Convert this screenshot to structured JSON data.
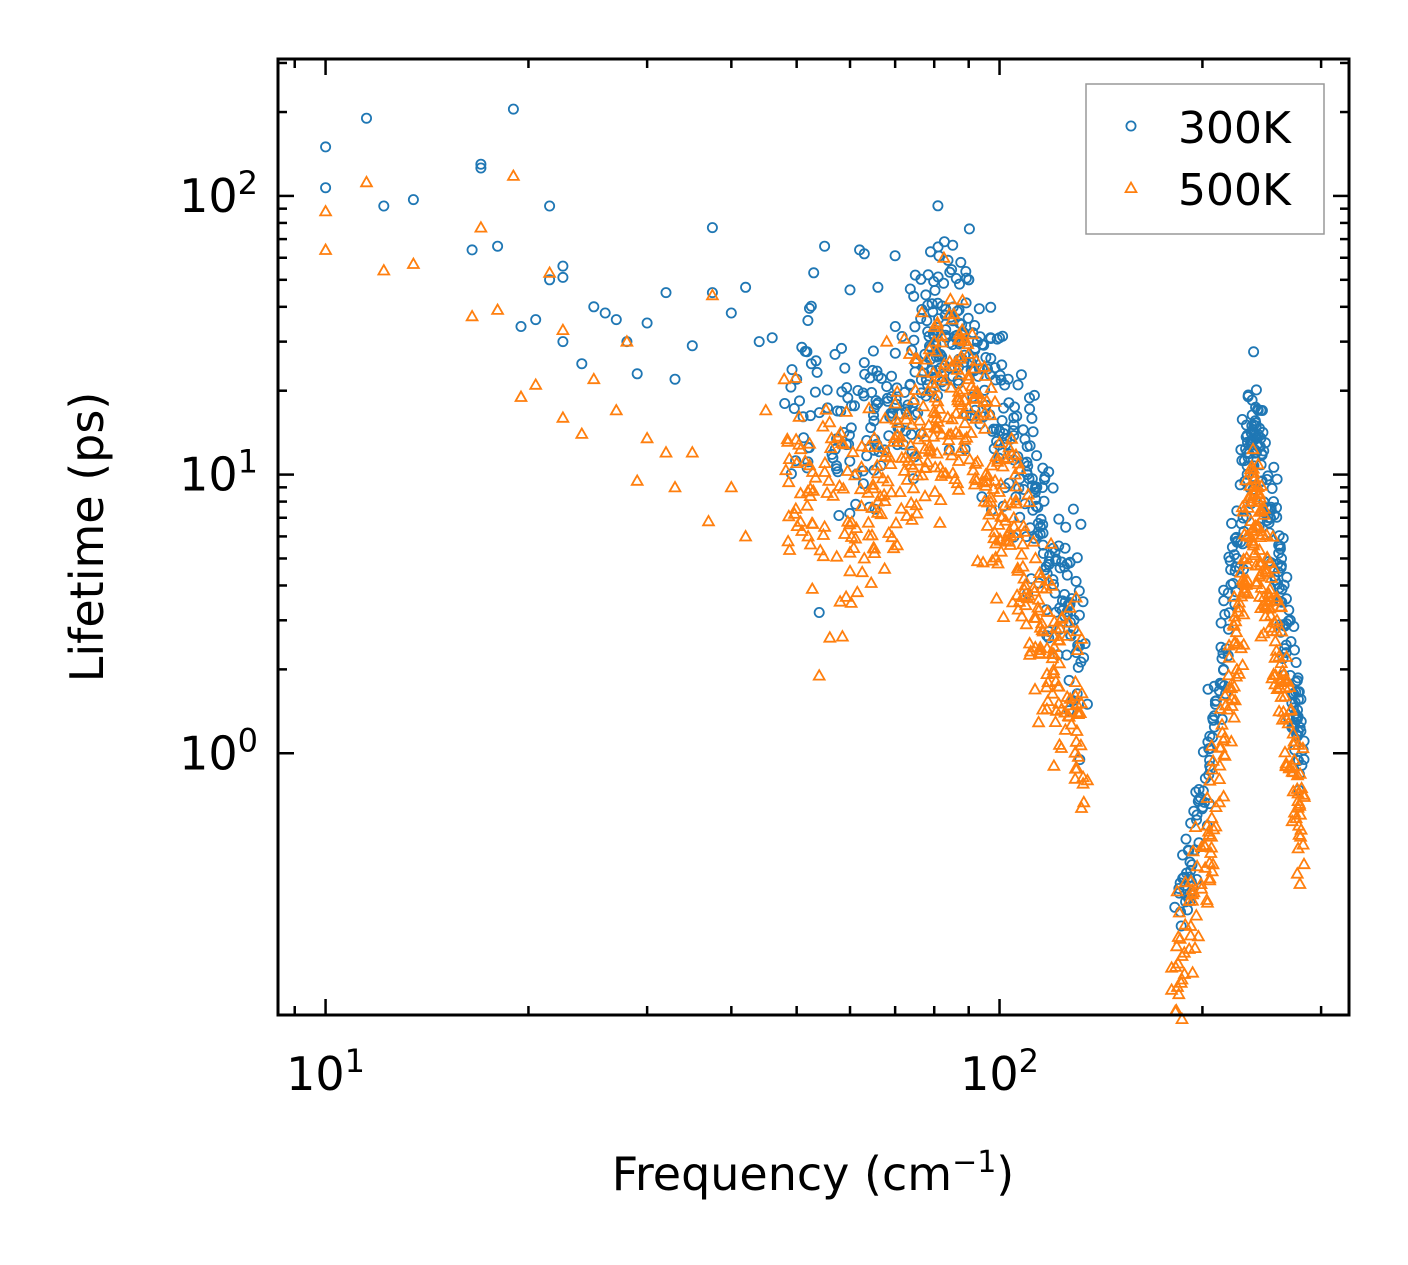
{
  "chart_data": {
    "type": "scatter",
    "xscale": "log",
    "yscale": "log",
    "xlabel": "Frequency (cm⁻¹)",
    "ylabel": "Lifetime (ps)",
    "xlim": [
      8.5,
      330
    ],
    "ylim": [
      0.115,
      310
    ],
    "x_ticks": [
      {
        "value": 10,
        "base": "10",
        "exp": "1"
      },
      {
        "value": 100,
        "base": "10",
        "exp": "2"
      }
    ],
    "y_ticks": [
      {
        "value": 1,
        "base": "10",
        "exp": "0"
      },
      {
        "value": 10,
        "base": "10",
        "exp": "1"
      },
      {
        "value": 100,
        "base": "10",
        "exp": "2"
      }
    ],
    "legend_position": "top-right",
    "series": [
      {
        "name": "300K",
        "marker": "circle",
        "color": "#1f77b4",
        "points": [
          [
            10.0,
            150
          ],
          [
            10.0,
            107
          ],
          [
            11.5,
            190
          ],
          [
            12.2,
            92
          ],
          [
            13.5,
            97
          ],
          [
            17.0,
            130
          ],
          [
            17.0,
            126
          ],
          [
            18.0,
            66
          ],
          [
            16.5,
            64
          ],
          [
            19.0,
            205
          ],
          [
            19.5,
            34
          ],
          [
            20.5,
            36
          ],
          [
            21.5,
            50
          ],
          [
            21.5,
            92
          ],
          [
            22.5,
            56
          ],
          [
            22.5,
            51
          ],
          [
            22.5,
            30
          ],
          [
            24.0,
            25
          ],
          [
            25.0,
            40
          ],
          [
            26.0,
            38
          ],
          [
            27.0,
            36
          ],
          [
            28.0,
            30
          ],
          [
            29.0,
            23
          ],
          [
            30.0,
            35
          ],
          [
            32.0,
            45
          ],
          [
            33.0,
            22
          ],
          [
            35.0,
            29
          ],
          [
            37.5,
            45
          ],
          [
            37.5,
            77
          ],
          [
            40.0,
            38
          ],
          [
            42.0,
            47
          ],
          [
            44.0,
            30
          ],
          [
            46.0,
            31
          ],
          [
            48.0,
            18
          ],
          [
            50.0,
            22
          ],
          [
            53.0,
            53
          ],
          [
            55.0,
            66
          ],
          [
            54.0,
            3.2
          ],
          [
            57.0,
            27
          ],
          [
            60.0,
            46
          ],
          [
            62.0,
            64
          ],
          [
            63.0,
            62
          ],
          [
            66.0,
            47
          ],
          [
            70.0,
            61
          ],
          [
            75.0,
            52
          ],
          [
            79.0,
            63
          ],
          [
            90.0,
            50
          ],
          [
            97.0,
            31
          ],
          [
            100.0,
            31
          ],
          [
            103.0,
            22
          ],
          [
            105.0,
            16
          ],
          [
            110.0,
            10
          ],
          [
            115.0,
            6.5
          ],
          [
            120.0,
            4.2
          ],
          [
            125.0,
            3.1
          ],
          [
            130.0,
            2.3
          ],
          [
            135.0,
            1.5
          ],
          [
            182.0,
            0.28
          ],
          [
            186.0,
            0.24
          ],
          [
            195.0,
            0.45
          ],
          [
            205.0,
            0.9
          ],
          [
            215.0,
            2.0
          ],
          [
            225.0,
            5.0
          ],
          [
            233.0,
            12
          ],
          [
            237.0,
            18.5
          ],
          [
            242.0,
            17
          ],
          [
            248.0,
            13
          ],
          [
            255.0,
            8
          ],
          [
            262.0,
            5
          ],
          [
            270.0,
            3
          ],
          [
            275.0,
            1.8
          ],
          [
            280.0,
            1.2
          ],
          [
            283.0,
            0.95
          ]
        ]
      },
      {
        "name": "500K",
        "marker": "triangle",
        "color": "#ff7f0e",
        "points": [
          [
            10.0,
            88
          ],
          [
            10.0,
            64
          ],
          [
            11.5,
            112
          ],
          [
            12.2,
            54
          ],
          [
            13.5,
            57
          ],
          [
            17.0,
            77
          ],
          [
            16.5,
            37
          ],
          [
            18.0,
            39
          ],
          [
            19.0,
            118
          ],
          [
            19.5,
            19
          ],
          [
            20.5,
            21
          ],
          [
            21.5,
            53
          ],
          [
            22.5,
            33
          ],
          [
            22.5,
            16
          ],
          [
            24.0,
            14
          ],
          [
            25.0,
            22
          ],
          [
            27.0,
            17
          ],
          [
            28.0,
            30
          ],
          [
            29.0,
            9.5
          ],
          [
            30.0,
            13.5
          ],
          [
            32.0,
            12
          ],
          [
            33.0,
            9
          ],
          [
            35.0,
            12
          ],
          [
            37.0,
            6.8
          ],
          [
            37.5,
            44
          ],
          [
            40.0,
            9
          ],
          [
            42.0,
            6
          ],
          [
            45.0,
            17
          ],
          [
            50.0,
            11
          ],
          [
            52.0,
            6
          ],
          [
            54.0,
            1.9
          ],
          [
            56.0,
            2.6
          ],
          [
            58.0,
            3.5
          ],
          [
            60.0,
            4.5
          ],
          [
            63.0,
            5
          ],
          [
            66.0,
            8
          ],
          [
            68.0,
            30
          ],
          [
            70.0,
            18
          ],
          [
            75.0,
            26
          ],
          [
            80.0,
            30
          ],
          [
            85.0,
            36
          ],
          [
            90.0,
            22
          ],
          [
            95.0,
            8
          ],
          [
            100.0,
            13
          ],
          [
            105.0,
            7
          ],
          [
            110.0,
            3.6
          ],
          [
            113.0,
            2.4
          ],
          [
            118.0,
            1.8
          ],
          [
            125.0,
            1.4
          ],
          [
            130.0,
            1.1
          ],
          [
            135.0,
            0.8
          ],
          [
            180.0,
            0.17
          ],
          [
            186.0,
            0.15
          ],
          [
            195.0,
            0.2
          ],
          [
            205.0,
            0.35
          ],
          [
            215.0,
            0.7
          ],
          [
            225.0,
            2.0
          ],
          [
            233.0,
            6
          ],
          [
            238.0,
            10.5
          ],
          [
            243.0,
            8.5
          ],
          [
            250.0,
            5
          ],
          [
            258.0,
            3
          ],
          [
            265.0,
            1.6
          ],
          [
            272.0,
            0.9
          ],
          [
            278.0,
            0.55
          ],
          [
            283.0,
            0.4
          ]
        ]
      }
    ],
    "bands": [
      {
        "series": 0,
        "centers": [
          [
            48,
            20
          ],
          [
            55,
            16
          ],
          [
            60,
            15
          ],
          [
            66,
            16
          ],
          [
            72,
            22
          ],
          [
            78,
            28
          ],
          [
            82,
            34
          ],
          [
            86,
            36
          ],
          [
            90,
            30
          ],
          [
            96,
            22
          ],
          [
            102,
            15
          ],
          [
            108,
            10.5
          ],
          [
            114,
            7.5
          ],
          [
            120,
            5
          ],
          [
            126,
            3.3
          ],
          [
            133,
            2.1
          ]
        ],
        "spread": 0.32,
        "n": 420
      },
      {
        "series": 0,
        "centers": [
          [
            185,
            0.3
          ],
          [
            195,
            0.5
          ],
          [
            205,
            1.0
          ],
          [
            215,
            2.5
          ],
          [
            225,
            6
          ],
          [
            232,
            11
          ],
          [
            238,
            14
          ],
          [
            244,
            12
          ],
          [
            252,
            7.5
          ],
          [
            260,
            4.2
          ],
          [
            268,
            2.5
          ],
          [
            276,
            1.5
          ],
          [
            282,
            1.05
          ]
        ],
        "spread": 0.22,
        "n": 260
      },
      {
        "series": 1,
        "centers": [
          [
            48,
            11
          ],
          [
            55,
            8.5
          ],
          [
            60,
            7
          ],
          [
            66,
            8
          ],
          [
            72,
            12
          ],
          [
            78,
            16
          ],
          [
            82,
            19
          ],
          [
            86,
            20
          ],
          [
            90,
            17
          ],
          [
            96,
            11
          ],
          [
            102,
            7
          ],
          [
            108,
            4.8
          ],
          [
            114,
            3.2
          ],
          [
            120,
            2.3
          ],
          [
            126,
            1.8
          ],
          [
            133,
            1.2
          ]
        ],
        "spread": 0.35,
        "n": 460
      },
      {
        "series": 1,
        "centers": [
          [
            182,
            0.17
          ],
          [
            192,
            0.24
          ],
          [
            202,
            0.45
          ],
          [
            212,
            0.9
          ],
          [
            222,
            2.2
          ],
          [
            230,
            4.5
          ],
          [
            236,
            7
          ],
          [
            242,
            6.5
          ],
          [
            250,
            4
          ],
          [
            258,
            2.4
          ],
          [
            266,
            1.4
          ],
          [
            274,
            0.85
          ],
          [
            283,
            0.55
          ]
        ],
        "spread": 0.25,
        "n": 280
      }
    ]
  }
}
